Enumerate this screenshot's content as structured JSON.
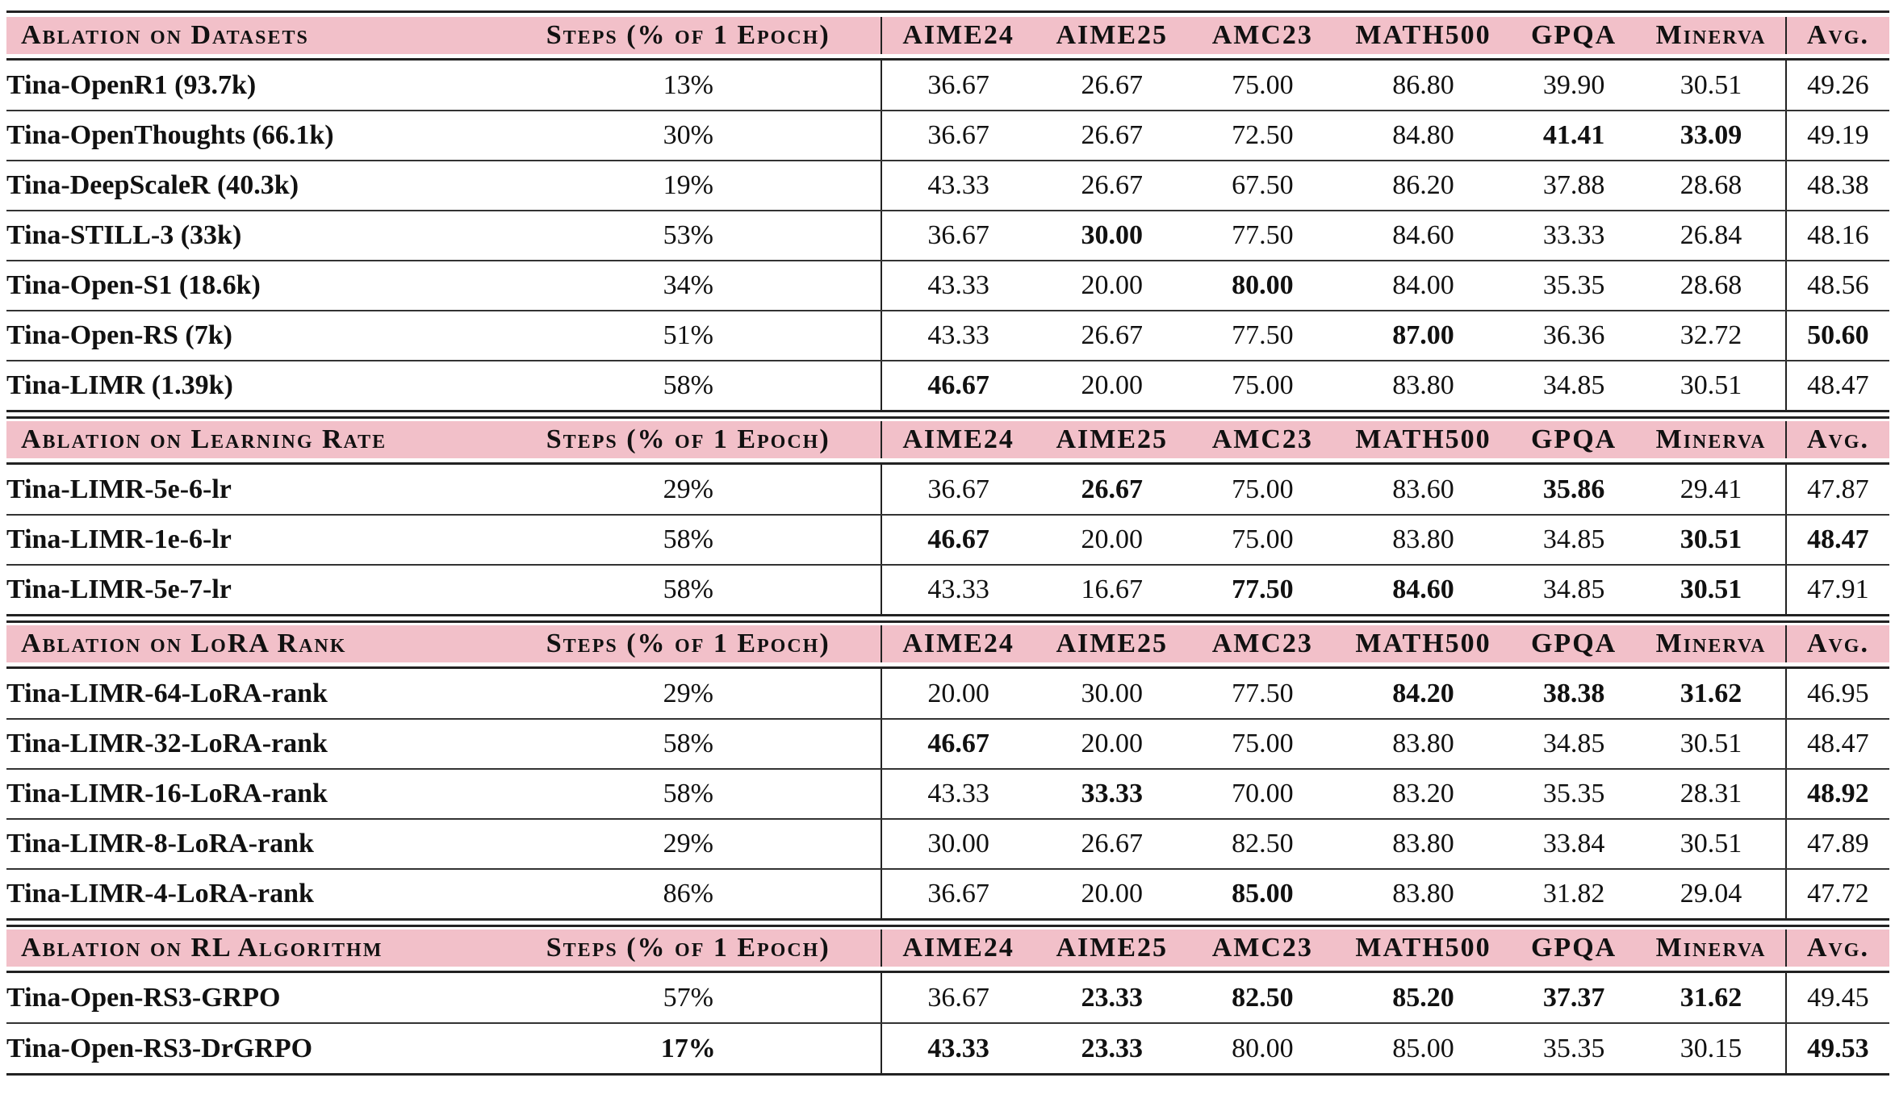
{
  "columns": {
    "steps": "Steps (% of 1 Epoch)",
    "aime24": "AIME24",
    "aime25": "AIME25",
    "amc23": "AMC23",
    "math500": "MATH500",
    "gpqa": "GPQA",
    "minerva": "Minerva",
    "avg": "Avg."
  },
  "sections": [
    {
      "title": "Ablation on Datasets",
      "rows": [
        {
          "name": "Tina-OpenR1 (93.7k)",
          "steps": "13%",
          "aime24": "36.67",
          "aime25": "26.67",
          "amc23": "75.00",
          "math500": "86.80",
          "gpqa": "39.90",
          "minerva": "30.51",
          "avg": "49.26",
          "bold": []
        },
        {
          "name": "Tina-OpenThoughts (66.1k)",
          "steps": "30%",
          "aime24": "36.67",
          "aime25": "26.67",
          "amc23": "72.50",
          "math500": "84.80",
          "gpqa": "41.41",
          "minerva": "33.09",
          "avg": "49.19",
          "bold": [
            "gpqa",
            "minerva"
          ]
        },
        {
          "name": "Tina-DeepScaleR (40.3k)",
          "steps": "19%",
          "aime24": "43.33",
          "aime25": "26.67",
          "amc23": "67.50",
          "math500": "86.20",
          "gpqa": "37.88",
          "minerva": "28.68",
          "avg": "48.38",
          "bold": []
        },
        {
          "name": "Tina-STILL-3 (33k)",
          "steps": "53%",
          "aime24": "36.67",
          "aime25": "30.00",
          "amc23": "77.50",
          "math500": "84.60",
          "gpqa": "33.33",
          "minerva": "26.84",
          "avg": "48.16",
          "bold": [
            "aime25"
          ]
        },
        {
          "name": "Tina-Open-S1 (18.6k)",
          "steps": "34%",
          "aime24": "43.33",
          "aime25": "20.00",
          "amc23": "80.00",
          "math500": "84.00",
          "gpqa": "35.35",
          "minerva": "28.68",
          "avg": "48.56",
          "bold": [
            "amc23"
          ]
        },
        {
          "name": "Tina-Open-RS (7k)",
          "steps": "51%",
          "aime24": "43.33",
          "aime25": "26.67",
          "amc23": "77.50",
          "math500": "87.00",
          "gpqa": "36.36",
          "minerva": "32.72",
          "avg": "50.60",
          "bold": [
            "math500",
            "avg"
          ]
        },
        {
          "name": "Tina-LIMR (1.39k)",
          "steps": "58%",
          "aime24": "46.67",
          "aime25": "20.00",
          "amc23": "75.00",
          "math500": "83.80",
          "gpqa": "34.85",
          "minerva": "30.51",
          "avg": "48.47",
          "bold": [
            "aime24"
          ]
        }
      ]
    },
    {
      "title": "Ablation on Learning Rate",
      "rows": [
        {
          "name": "Tina-LIMR-5e-6-lr",
          "steps": "29%",
          "aime24": "36.67",
          "aime25": "26.67",
          "amc23": "75.00",
          "math500": "83.60",
          "gpqa": "35.86",
          "minerva": "29.41",
          "avg": "47.87",
          "bold": [
            "aime25",
            "gpqa"
          ]
        },
        {
          "name": "Tina-LIMR-1e-6-lr",
          "steps": "58%",
          "aime24": "46.67",
          "aime25": "20.00",
          "amc23": "75.00",
          "math500": "83.80",
          "gpqa": "34.85",
          "minerva": "30.51",
          "avg": "48.47",
          "bold": [
            "aime24",
            "minerva",
            "avg"
          ]
        },
        {
          "name": "Tina-LIMR-5e-7-lr",
          "steps": "58%",
          "aime24": "43.33",
          "aime25": "16.67",
          "amc23": "77.50",
          "math500": "84.60",
          "gpqa": "34.85",
          "minerva": "30.51",
          "avg": "47.91",
          "bold": [
            "amc23",
            "math500",
            "minerva"
          ]
        }
      ]
    },
    {
      "title": "Ablation on LoRA Rank",
      "rows": [
        {
          "name": "Tina-LIMR-64-LoRA-rank",
          "steps": "29%",
          "aime24": "20.00",
          "aime25": "30.00",
          "amc23": "77.50",
          "math500": "84.20",
          "gpqa": "38.38",
          "minerva": "31.62",
          "avg": "46.95",
          "bold": [
            "math500",
            "gpqa",
            "minerva"
          ]
        },
        {
          "name": "Tina-LIMR-32-LoRA-rank",
          "steps": "58%",
          "aime24": "46.67",
          "aime25": "20.00",
          "amc23": "75.00",
          "math500": "83.80",
          "gpqa": "34.85",
          "minerva": "30.51",
          "avg": "48.47",
          "bold": [
            "aime24"
          ]
        },
        {
          "name": "Tina-LIMR-16-LoRA-rank",
          "steps": "58%",
          "aime24": "43.33",
          "aime25": "33.33",
          "amc23": "70.00",
          "math500": "83.20",
          "gpqa": "35.35",
          "minerva": "28.31",
          "avg": "48.92",
          "bold": [
            "aime25",
            "avg"
          ]
        },
        {
          "name": "Tina-LIMR-8-LoRA-rank",
          "steps": "29%",
          "aime24": "30.00",
          "aime25": "26.67",
          "amc23": "82.50",
          "math500": "83.80",
          "gpqa": "33.84",
          "minerva": "30.51",
          "avg": "47.89",
          "bold": []
        },
        {
          "name": "Tina-LIMR-4-LoRA-rank",
          "steps": "86%",
          "aime24": "36.67",
          "aime25": "20.00",
          "amc23": "85.00",
          "math500": "83.80",
          "gpqa": "31.82",
          "minerva": "29.04",
          "avg": "47.72",
          "bold": [
            "amc23"
          ]
        }
      ]
    },
    {
      "title": "Ablation on RL Algorithm",
      "rows": [
        {
          "name": "Tina-Open-RS3-GRPO",
          "steps": "57%",
          "aime24": "36.67",
          "aime25": "23.33",
          "amc23": "82.50",
          "math500": "85.20",
          "gpqa": "37.37",
          "minerva": "31.62",
          "avg": "49.45",
          "bold": [
            "aime25",
            "amc23",
            "math500",
            "gpqa",
            "minerva"
          ]
        },
        {
          "name": "Tina-Open-RS3-DrGRPO",
          "steps": "17%",
          "aime24": "43.33",
          "aime25": "23.33",
          "amc23": "80.00",
          "math500": "85.00",
          "gpqa": "35.35",
          "minerva": "30.15",
          "avg": "49.53",
          "bold": [
            "steps",
            "aime24",
            "aime25",
            "avg"
          ]
        }
      ]
    }
  ]
}
